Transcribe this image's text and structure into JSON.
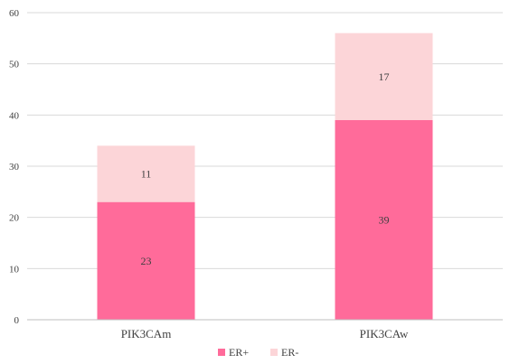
{
  "chart_data": {
    "type": "bar",
    "stacked": true,
    "title": "",
    "xlabel": "",
    "ylabel": "",
    "categories": [
      "PIK3CAm",
      "PIK3CAw"
    ],
    "series": [
      {
        "name": "ER+",
        "values": [
          23,
          39
        ],
        "color": "#ff6b9a"
      },
      {
        "name": "ER-",
        "values": [
          11,
          17
        ],
        "color": "#fcd5d8"
      }
    ],
    "ylim": [
      0,
      60
    ],
    "yticks": [
      0,
      10,
      20,
      30,
      40,
      50,
      60
    ],
    "grid": true,
    "legend": "bottom",
    "data_labels": true
  }
}
